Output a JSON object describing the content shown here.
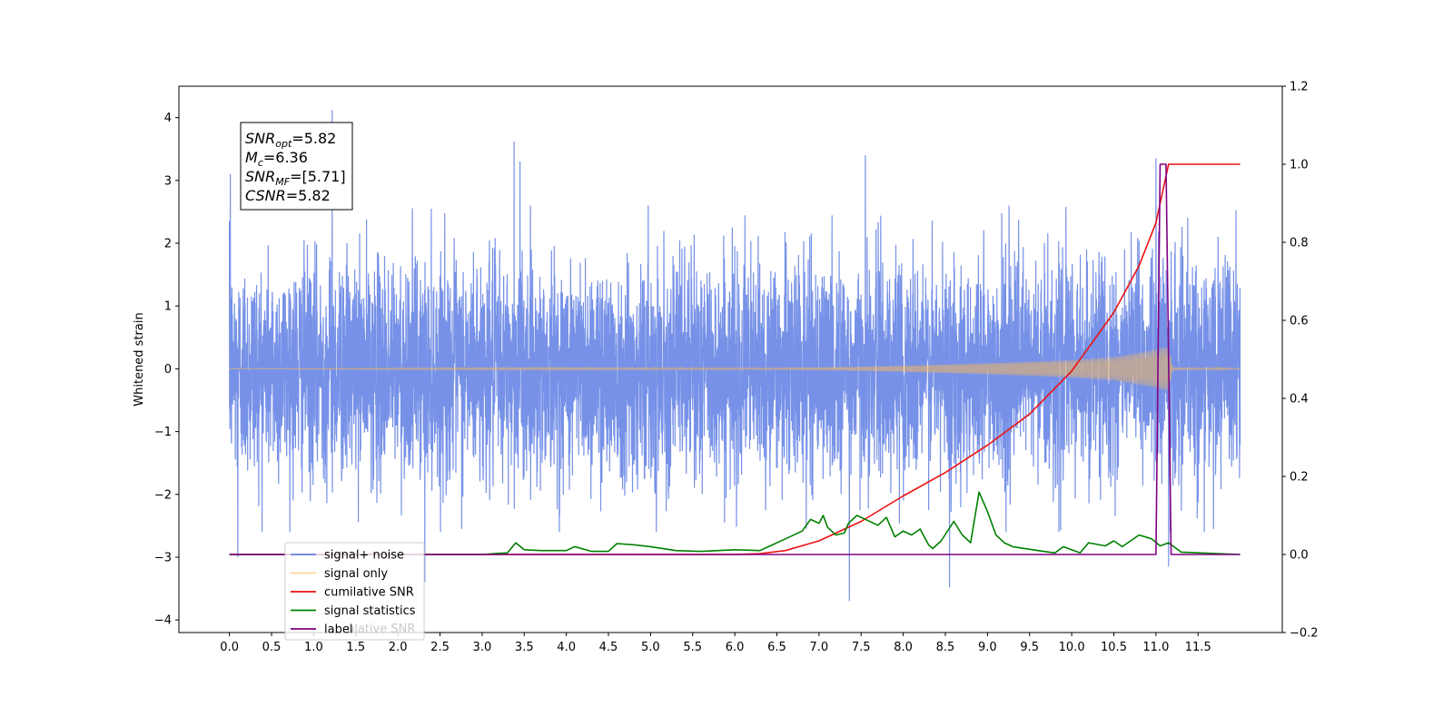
{
  "chart_data": {
    "type": "line",
    "ylabel_left": "Whitened strain",
    "xlim": [
      -0.6,
      12.5
    ],
    "ylim_left": [
      -4.2,
      4.5
    ],
    "ylim_right": [
      -0.2,
      1.2
    ],
    "x_ticks": [
      0.0,
      0.5,
      1.0,
      1.5,
      2.0,
      2.5,
      3.0,
      3.5,
      4.0,
      4.5,
      5.0,
      5.5,
      6.0,
      6.5,
      7.0,
      7.5,
      8.0,
      8.5,
      9.0,
      9.5,
      10.0,
      10.5,
      11.0,
      11.5
    ],
    "x_tick_labels": [
      "0.0",
      "0.5",
      "1.0",
      "1.5",
      "2.0",
      "2.5",
      "3.0",
      "3.5",
      "4.0",
      "4.5",
      "5.0",
      "5.5",
      "6.0",
      "6.5",
      "7.0",
      "7.5",
      "8.0",
      "8.5",
      "9.0",
      "9.5",
      "10.0",
      "10.5",
      "11.0",
      "11.5"
    ],
    "y_left_ticks": [
      -4,
      -3,
      -2,
      -1,
      0,
      1,
      2,
      3,
      4
    ],
    "y_left_tick_labels": [
      "−4",
      "−3",
      "−2",
      "−1",
      "0",
      "1",
      "2",
      "3",
      "4"
    ],
    "y_right_ticks": [
      -0.2,
      0.0,
      0.2,
      0.4,
      0.6,
      0.8,
      1.0,
      1.2
    ],
    "y_right_tick_labels": [
      "−0.2",
      "0.0",
      "0.2",
      "0.4",
      "0.6",
      "0.8",
      "1.0",
      "1.2"
    ],
    "legend_placement": "lower-left",
    "grid": false,
    "series": [
      {
        "name": "signal+ noise",
        "axis": "left",
        "color": "#4166de",
        "style": "dense whitened noise, amplitude ~±2.5 with spikes up to 4.1",
        "noise_std": 0.85,
        "x_range": [
          0.0,
          12.0
        ],
        "spikes": [
          [
            1.22,
            4.12
          ],
          [
            0.01,
            3.1
          ],
          [
            3.38,
            3.62
          ],
          [
            3.45,
            3.3
          ],
          [
            7.55,
            3.4
          ],
          [
            7.36,
            -3.7
          ],
          [
            8.55,
            -3.48
          ],
          [
            2.32,
            -3.4
          ],
          [
            11.0,
            3.35
          ],
          [
            11.15,
            -3.15
          ],
          [
            0.1,
            -3.0
          ]
        ]
      },
      {
        "name": "signal only",
        "axis": "left",
        "color": "#ffbb55",
        "style": "chirp growing in amplitude, cut off at merger",
        "envelope": [
          [
            0.0,
            0.0
          ],
          [
            6.0,
            0.01
          ],
          [
            7.0,
            0.02
          ],
          [
            8.0,
            0.05
          ],
          [
            9.0,
            0.09
          ],
          [
            10.0,
            0.14
          ],
          [
            10.5,
            0.19
          ],
          [
            10.9,
            0.28
          ],
          [
            11.15,
            0.36
          ],
          [
            11.2,
            0.02
          ],
          [
            12.0,
            0.0
          ]
        ]
      },
      {
        "name": "cumilative SNR",
        "axis": "right",
        "color": "#ee1111",
        "x": [
          0.0,
          6.0,
          6.3,
          6.6,
          7.0,
          7.5,
          8.0,
          8.5,
          9.0,
          9.5,
          10.0,
          10.5,
          10.8,
          11.0,
          11.15,
          11.3,
          12.0
        ],
        "values": [
          0.0,
          0.0,
          0.002,
          0.01,
          0.035,
          0.085,
          0.15,
          0.21,
          0.28,
          0.36,
          0.47,
          0.62,
          0.74,
          0.85,
          1.0,
          1.0,
          1.0
        ]
      },
      {
        "name": "signal statistics",
        "axis": "right",
        "color": "#008000",
        "x": [
          0.0,
          3.0,
          3.2,
          3.3,
          3.4,
          3.5,
          3.7,
          4.0,
          4.1,
          4.3,
          4.5,
          4.6,
          4.8,
          5.0,
          5.3,
          5.6,
          6.0,
          6.3,
          6.4,
          6.6,
          6.8,
          6.9,
          7.0,
          7.05,
          7.1,
          7.2,
          7.3,
          7.35,
          7.45,
          7.55,
          7.7,
          7.8,
          7.9,
          8.0,
          8.1,
          8.2,
          8.3,
          8.35,
          8.45,
          8.6,
          8.7,
          8.8,
          8.9,
          9.0,
          9.1,
          9.2,
          9.3,
          9.6,
          9.8,
          9.9,
          10.1,
          10.2,
          10.4,
          10.5,
          10.6,
          10.8,
          10.95,
          11.05,
          11.15,
          11.3,
          12.0
        ],
        "values": [
          0.0,
          0.0,
          0.003,
          0.004,
          0.03,
          0.012,
          0.01,
          0.01,
          0.02,
          0.008,
          0.008,
          0.028,
          0.025,
          0.02,
          0.01,
          0.008,
          0.012,
          0.01,
          0.02,
          0.04,
          0.06,
          0.09,
          0.08,
          0.1,
          0.07,
          0.05,
          0.055,
          0.08,
          0.1,
          0.09,
          0.075,
          0.095,
          0.045,
          0.06,
          0.05,
          0.065,
          0.025,
          0.015,
          0.035,
          0.085,
          0.05,
          0.03,
          0.16,
          0.11,
          0.05,
          0.03,
          0.02,
          0.01,
          0.004,
          0.02,
          0.004,
          0.03,
          0.022,
          0.035,
          0.02,
          0.05,
          0.04,
          0.022,
          0.03,
          0.006,
          0.0
        ]
      },
      {
        "name": "label",
        "axis": "right",
        "color": "#800080",
        "x": [
          0.0,
          11.0,
          11.05,
          11.12,
          11.18,
          12.0
        ],
        "values": [
          0.0,
          0.0,
          1.0,
          1.0,
          0.0,
          0.0
        ]
      }
    ],
    "annotation": {
      "lines": [
        {
          "sym": "SNR",
          "sub": "opt",
          "value": "=5.82"
        },
        {
          "sym": "M",
          "sub": "c",
          "value": "=6.36"
        },
        {
          "sym": "SNR",
          "sub": "MF",
          "value": "=[5.71]"
        },
        {
          "sym": "CSNR",
          "sub": "",
          "value": "=5.82"
        }
      ]
    },
    "legend_overlap_text": "ulative SNR"
  }
}
